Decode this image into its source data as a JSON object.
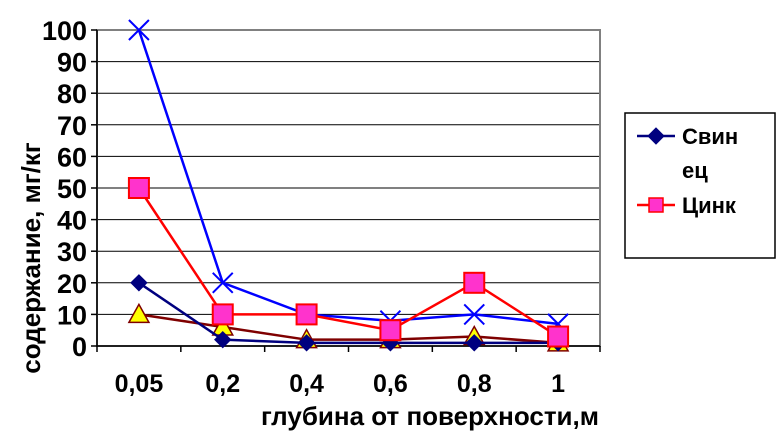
{
  "chart_data": {
    "type": "line",
    "xlabel": "глубина от поверхности,м",
    "ylabel": "содержание, мг/кг",
    "categories": [
      "0,05",
      "0,2",
      "0,4",
      "0,6",
      "0,8",
      "1"
    ],
    "ylim": [
      0,
      100
    ],
    "yticks": [
      0,
      10,
      20,
      30,
      40,
      50,
      60,
      70,
      80,
      90,
      100
    ],
    "grid": true,
    "legend_position": "right",
    "series": [
      {
        "name": "Свинец",
        "legend_lines": [
          "Свин",
          "ец"
        ],
        "color": "#00007f",
        "marker": "diamond",
        "values": [
          20,
          2,
          1,
          1,
          1,
          1
        ]
      },
      {
        "name": "Цинк",
        "legend_lines": [
          "Цинк"
        ],
        "color": "#ff0000",
        "marker": "square",
        "values": [
          50,
          10,
          10,
          5,
          20,
          3
        ]
      },
      {
        "color": "#0000ff",
        "marker": "x",
        "values": [
          100,
          20,
          10,
          8,
          10,
          7
        ]
      },
      {
        "color": "#7f0000",
        "marker": "triangle",
        "values": [
          10,
          6,
          2,
          2,
          3,
          1
        ]
      }
    ]
  }
}
